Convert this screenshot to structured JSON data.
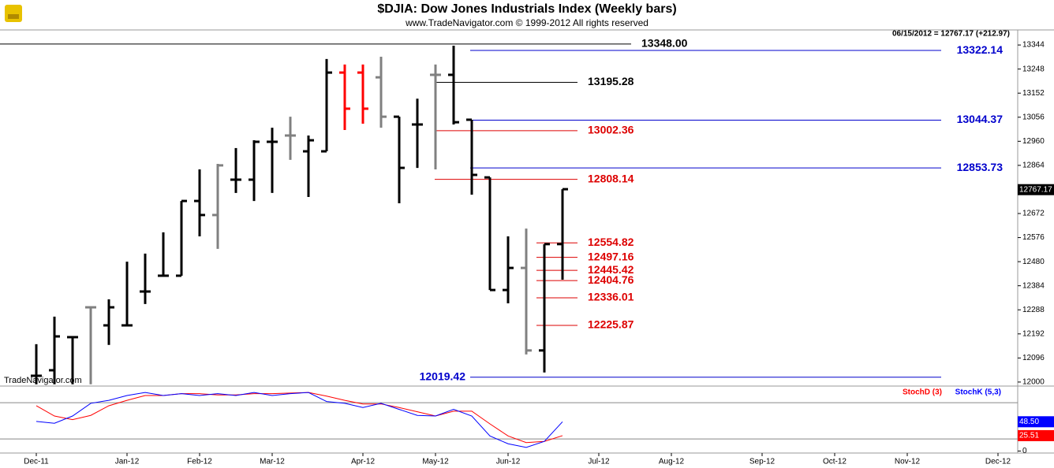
{
  "chart_data": [
    {
      "type": "ohlc",
      "title": "$DJIA:  Dow Jones Industrials Index  (Weekly bars)",
      "subtitle": "www.TradeNavigator.com © 1999-2012 All rights reserved",
      "info": "06/15/2012 = 12767.17 (+212.97)",
      "watermark": "TradeNavigator.com",
      "ylim": [
        11984,
        13404
      ],
      "yticks": [
        12000,
        12096,
        12192,
        12288,
        12384,
        12480,
        12576,
        12672,
        12768,
        12864,
        12960,
        13056,
        13152,
        13248,
        13344
      ],
      "open": [
        12025,
        12047,
        12179,
        12298,
        12226,
        12226,
        12361,
        12424,
        12424,
        12722,
        12666,
        12807,
        12807,
        12958,
        12983,
        12920,
        12920,
        13234,
        13234,
        13215,
        13058,
        13027,
        13225,
        13225,
        13046,
        12816,
        12367,
        12455,
        12126,
        12550
      ],
      "high": [
        12151,
        12261,
        12179,
        12298,
        12330,
        12480,
        12512,
        12597,
        12722,
        12848,
        12870,
        12933,
        12964,
        13014,
        13058,
        12983,
        13288,
        13266,
        13266,
        13297,
        13058,
        13130,
        13266,
        13341,
        13046,
        12816,
        12581,
        12612,
        12550,
        12769
      ],
      "low": [
        11991,
        11991,
        11991,
        11991,
        12148,
        12226,
        12311,
        12424,
        12424,
        12581,
        12531,
        12754,
        12722,
        12754,
        12886,
        12738,
        12920,
        13005,
        13030,
        13014,
        12713,
        12854,
        12848,
        13027,
        12747,
        12367,
        12314,
        12110,
        12038,
        12408
      ],
      "close": [
        12025,
        12182,
        12179,
        12298,
        12298,
        12226,
        12361,
        12424,
        12722,
        12666,
        12864,
        12807,
        12958,
        12958,
        12983,
        12964,
        13234,
        13090,
        13090,
        13058,
        12854,
        13027,
        13225,
        13036,
        12826,
        12367,
        12455,
        12126,
        12550,
        12769
      ],
      "colors": [
        "#000000",
        "#000000",
        "#000000",
        "#808080",
        "#000000",
        "#000000",
        "#000000",
        "#000000",
        "#000000",
        "#000000",
        "#808080",
        "#000000",
        "#000000",
        "#000000",
        "#808080",
        "#000000",
        "#000000",
        "#ff0000",
        "#ff0000",
        "#808080",
        "#000000",
        "#000000",
        "#808080",
        "#000000",
        "#000000",
        "#000000",
        "#000000",
        "#808080",
        "#000000",
        "#000000"
      ],
      "last_price": 12767.17,
      "levels": [
        {
          "value": 13348,
          "label": "13348.00",
          "color": "#000000"
        },
        {
          "value": 13322.14,
          "label": "13322.14",
          "color": "#0000cc"
        },
        {
          "value": 13195.28,
          "label": "13195.28",
          "color": "#000000"
        },
        {
          "value": 13044.37,
          "label": "13044.37",
          "color": "#0000cc"
        },
        {
          "value": 13002.36,
          "label": "13002.36",
          "color": "#dd0000"
        },
        {
          "value": 12853.73,
          "label": "12853.73",
          "color": "#0000cc"
        },
        {
          "value": 12808.14,
          "label": "12808.14",
          "color": "#dd0000"
        },
        {
          "value": 12554.82,
          "label": "12554.82",
          "color": "#dd0000"
        },
        {
          "value": 12497.16,
          "label": "12497.16",
          "color": "#dd0000"
        },
        {
          "value": 12445.42,
          "label": "12445.42",
          "color": "#dd0000"
        },
        {
          "value": 12404.76,
          "label": "12404.76",
          "color": "#dd0000"
        },
        {
          "value": 12336.01,
          "label": "12336.01",
          "color": "#dd0000"
        },
        {
          "value": 12225.87,
          "label": "12225.87",
          "color": "#dd0000"
        },
        {
          "value": 12019.42,
          "label": "12019.42",
          "color": "#0000cc"
        }
      ]
    },
    {
      "type": "line",
      "ylim": [
        -2,
        105
      ],
      "yticks": [
        0
      ],
      "ref_lines": [
        80,
        20
      ],
      "xlim": [
        -2,
        54
      ],
      "xticks": [
        {
          "value": 0,
          "label": "Dec-11"
        },
        {
          "value": 5,
          "label": "Jan-12"
        },
        {
          "value": 9,
          "label": "Feb-12"
        },
        {
          "value": 13,
          "label": "Mar-12"
        },
        {
          "value": 18,
          "label": "Apr-12"
        },
        {
          "value": 22,
          "label": "May-12"
        },
        {
          "value": 26,
          "label": "Jun-12"
        },
        {
          "value": 31,
          "label": "Jul-12"
        },
        {
          "value": 35,
          "label": "Aug-12"
        },
        {
          "value": 40,
          "label": "Sep-12"
        },
        {
          "value": 44,
          "label": "Oct-12"
        },
        {
          "value": 48,
          "label": "Nov-12"
        },
        {
          "value": 53,
          "label": "Dec-12"
        }
      ],
      "series": [
        {
          "name": "StochD (3)",
          "color": "#ff0000",
          "values": [
            75,
            58,
            52,
            59,
            75,
            84,
            92,
            92,
            95,
            95,
            93,
            93,
            95,
            95,
            96,
            97,
            91,
            84,
            78,
            78,
            72,
            65,
            58,
            66,
            66,
            45,
            25,
            14,
            16,
            25.51
          ],
          "value_labels": [
            null,
            null,
            null,
            null,
            null,
            null,
            null,
            null,
            null,
            null,
            null,
            null,
            null,
            null,
            null,
            null,
            null,
            null,
            null,
            null,
            null,
            null,
            null,
            null,
            null,
            null,
            null,
            null,
            null,
            "25.51"
          ]
        },
        {
          "name": "StochK (5,3)",
          "color": "#0000ff",
          "values": [
            49,
            46,
            58,
            79,
            84,
            92,
            97,
            92,
            95,
            92,
            95,
            92,
            97,
            92,
            95,
            97,
            82,
            79,
            72,
            79,
            69,
            59,
            58,
            69,
            58,
            25,
            12,
            6,
            16,
            48.5
          ],
          "value_labels": [
            null,
            null,
            null,
            null,
            null,
            null,
            null,
            null,
            null,
            null,
            null,
            null,
            null,
            null,
            null,
            null,
            null,
            null,
            null,
            null,
            null,
            null,
            null,
            null,
            null,
            null,
            null,
            null,
            null,
            "48.50"
          ]
        }
      ]
    }
  ]
}
